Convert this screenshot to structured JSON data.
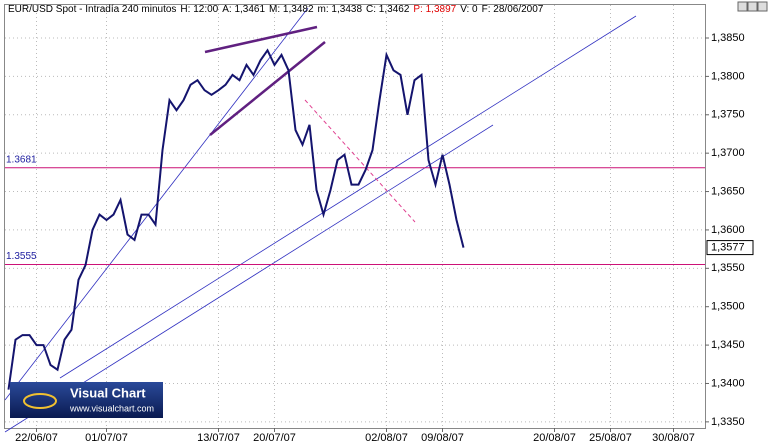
{
  "header": [
    {
      "text": "EUR/USD Spot - Intradía 240 minutos",
      "color": "#000000"
    },
    {
      "text": "H: 12:00",
      "color": "#000000"
    },
    {
      "text": "A: 1,3461",
      "color": "#000000"
    },
    {
      "text": "M: 1,3482",
      "color": "#000000"
    },
    {
      "text": "m: 1,3438",
      "color": "#000000"
    },
    {
      "text": "C: 1,3462",
      "color": "#000000"
    },
    {
      "text": "P: 1,3897",
      "color": "#e00000"
    },
    {
      "text": "V: 0",
      "color": "#000000"
    },
    {
      "text": "F: 28/06/2007",
      "color": "#000000"
    }
  ],
  "logo": {
    "title": "Visual Chart",
    "url": "www.visualchart.com"
  },
  "chart_data": {
    "type": "line",
    "categories": [
      null,
      null,
      null,
      null,
      "22/06/07",
      null,
      null,
      null,
      null,
      null,
      null,
      null,
      null,
      null,
      "01/07/07",
      null,
      null,
      null,
      null,
      null,
      null,
      null,
      null,
      null,
      null,
      null,
      null,
      null,
      null,
      null,
      "13/07/07",
      null,
      null,
      null,
      null,
      null,
      null,
      null,
      "20/07/07",
      null,
      null,
      null,
      null,
      null,
      null,
      null,
      null,
      null,
      null,
      null,
      null,
      null,
      null,
      null,
      "02/08/07",
      null,
      null,
      null,
      null,
      null,
      null,
      null,
      "09/08/07",
      null,
      null,
      null,
      null,
      null,
      null,
      null,
      null,
      null,
      null,
      null,
      null,
      null,
      null,
      null,
      "20/08/07",
      null,
      null,
      null,
      null,
      null,
      null,
      null,
      "25/08/07",
      null,
      null,
      null,
      null,
      null,
      null,
      null,
      null,
      "30/08/07",
      null,
      null,
      null,
      null
    ],
    "series": [
      {
        "name": "EUR/USD",
        "color": "#14146e",
        "values": [
          1.3392,
          1.3457,
          1.3463,
          1.3463,
          1.345,
          1.345,
          1.3424,
          1.3418,
          1.3457,
          1.347,
          1.3535,
          1.3554,
          1.36,
          1.362,
          1.3613,
          1.362,
          1.3639,
          1.3594,
          1.3587,
          1.362,
          1.362,
          1.3607,
          1.3704,
          1.3769,
          1.3756,
          1.3769,
          1.3789,
          1.3795,
          1.3782,
          1.3776,
          1.3782,
          1.3789,
          1.3802,
          1.3795,
          1.3815,
          1.3802,
          1.3821,
          1.3834,
          1.3815,
          1.3828,
          1.3808,
          1.373,
          1.3711,
          1.3737,
          1.3652,
          1.362,
          1.3652,
          1.3691,
          1.3698,
          1.3659,
          1.3659,
          1.3678,
          1.3704,
          1.3769,
          1.3828,
          1.3808,
          1.3802,
          1.375,
          1.3795,
          1.3802,
          1.3691,
          1.3659,
          1.3698,
          1.3659,
          1.3613,
          1.3577,
          null,
          null,
          null,
          null,
          null,
          null,
          null,
          null,
          null,
          null,
          null,
          null,
          null,
          null,
          null,
          null,
          null,
          null,
          null,
          null,
          null,
          null,
          null,
          null,
          null,
          null,
          null,
          null,
          null,
          null,
          null,
          null,
          null,
          null
        ]
      }
    ],
    "ylim": [
      1.3342,
      1.3893
    ],
    "yticks": [
      {
        "value": 1.385,
        "label": "1,3850"
      },
      {
        "value": 1.38,
        "label": "1,3800"
      },
      {
        "value": 1.375,
        "label": "1,3750"
      },
      {
        "value": 1.37,
        "label": "1,3700"
      },
      {
        "value": 1.365,
        "label": "1,3650"
      },
      {
        "value": 1.36,
        "label": "1,3600"
      },
      {
        "value": 1.355,
        "label": "1,3550"
      },
      {
        "value": 1.35,
        "label": "1,3500"
      },
      {
        "value": 1.345,
        "label": "1,3450"
      },
      {
        "value": 1.34,
        "label": "1,3400"
      },
      {
        "value": 1.335,
        "label": "1,3350"
      }
    ],
    "hlines": [
      {
        "value": 1.3681,
        "label": "1.3681",
        "color": "#cc1177"
      },
      {
        "value": 1.3555,
        "label": "1.3555",
        "color": "#cc1177"
      }
    ],
    "current_price": {
      "value": 1.3577,
      "label": "1,3577"
    },
    "grid": true
  }
}
